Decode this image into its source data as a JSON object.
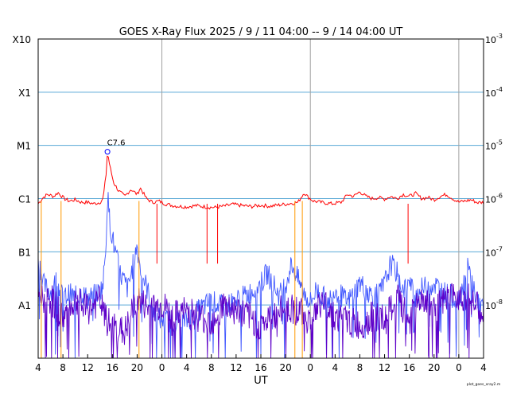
{
  "chart_data": {
    "type": "line",
    "title": "GOES X-Ray Flux   2025  /  9  /  11    04:00 --  9  /  14   04:00    UT",
    "xlabel": "UT",
    "x_range_hours": [
      0,
      72
    ],
    "ylim": [
      1e-09,
      0.001
    ],
    "yscale": "log",
    "left_tick_labels": [
      {
        "label": "X10",
        "value": 0.001
      },
      {
        "label": "X1",
        "value": 0.0001
      },
      {
        "label": "M1",
        "value": 1e-05
      },
      {
        "label": "C1",
        "value": 1e-06
      },
      {
        "label": "B1",
        "value": 1e-07
      },
      {
        "label": "A1",
        "value": 1e-08
      }
    ],
    "right_tick_labels": [
      {
        "base": "10",
        "exp": "-3",
        "value": 0.001
      },
      {
        "base": "10",
        "exp": "-4",
        "value": 0.0001
      },
      {
        "base": "10",
        "exp": "-5",
        "value": 1e-05
      },
      {
        "base": "10",
        "exp": "-6",
        "value": 1e-06
      },
      {
        "base": "10",
        "exp": "-7",
        "value": 1e-07
      },
      {
        "base": "10",
        "exp": "-8",
        "value": 1e-08
      }
    ],
    "x_tick_labels": [
      "4",
      "8",
      "12",
      "16",
      "20",
      "0",
      "4",
      "8",
      "12",
      "16",
      "20",
      "0",
      "4",
      "8",
      "12",
      "16",
      "20",
      "0",
      "4"
    ],
    "day_boundaries_hours": [
      20,
      44,
      68
    ],
    "grid": "horizontal at decades, vertical at midnight",
    "annotation": {
      "text": "C7.6",
      "x_hours": 11.2,
      "value": 7.6e-06
    },
    "series": [
      {
        "color": "#ff0000",
        "x_hours": [
          0,
          0.8,
          1.5,
          2.5,
          3.2,
          4.2,
          5,
          6,
          7,
          8,
          9,
          10,
          10.5,
          11,
          11.2,
          11.6,
          12.2,
          13,
          14,
          15,
          16,
          16.5,
          17.5,
          18.5,
          19.5,
          20.5,
          21.5,
          22.5,
          24,
          25.5,
          27,
          28.5,
          30,
          31.5,
          33,
          34.5,
          36,
          37.5,
          39,
          40.5,
          42,
          43,
          43.5,
          44.5,
          46,
          47.5,
          49,
          50,
          51,
          52,
          53,
          54,
          55,
          56,
          57,
          58,
          59,
          60,
          61,
          62,
          63,
          64,
          65,
          66,
          67,
          68,
          69,
          70,
          71,
          72
        ],
        "values": [
          8e-07,
          1.05e-06,
          1.2e-06,
          1.1e-06,
          1.3e-06,
          1e-06,
          9e-07,
          9.5e-07,
          8.5e-07,
          8.5e-07,
          8e-07,
          8.5e-07,
          1e-06,
          3e-06,
          7.6e-06,
          4e-06,
          2e-06,
          1.4e-06,
          1.1e-06,
          1.5e-06,
          1.2e-06,
          1.6e-06,
          1e-06,
          8.5e-07,
          9e-07,
          8e-07,
          7.5e-07,
          7.2e-07,
          7e-07,
          7.4e-07,
          7e-07,
          6.8e-07,
          7.2e-07,
          7.8e-07,
          7.4e-07,
          7.1e-07,
          7.5e-07,
          7.2e-07,
          7.6e-07,
          8e-07,
          8.5e-07,
          1.3e-06,
          1.1e-06,
          9e-07,
          8.4e-07,
          8e-07,
          8.5e-07,
          1.2e-06,
          1.1e-06,
          1.35e-06,
          1.1e-06,
          1e-06,
          1.05e-06,
          9.8e-07,
          1.1e-06,
          1e-06,
          1.2e-06,
          1.1e-06,
          1.25e-06,
          1e-06,
          1.05e-06,
          9.5e-07,
          1.1e-06,
          1.2e-06,
          1e-06,
          8.6e-07,
          9e-07,
          9.5e-07,
          8.4e-07,
          8.5e-07
        ]
      },
      {
        "color": "#3f56ff",
        "x_hours": [
          0,
          1,
          2,
          3,
          4,
          5,
          6,
          7,
          8,
          9,
          10,
          10.5,
          11,
          11.2,
          11.6,
          12.3,
          13.2,
          14.5,
          16,
          16.5,
          17.5,
          19,
          20.5,
          22,
          24,
          26,
          28,
          30,
          32,
          34,
          36,
          37,
          38,
          39,
          40,
          41,
          42,
          43,
          44,
          45,
          46,
          47,
          48,
          50,
          52,
          54,
          55,
          56,
          57,
          58,
          59,
          60,
          61,
          62,
          64,
          66,
          68,
          69.5,
          71,
          72
        ],
        "values": [
          8e-08,
          2.2e-08,
          1.8e-08,
          3e-08,
          1.3e-08,
          1.6e-08,
          1.4e-08,
          1.7e-08,
          1.3e-08,
          1.5e-08,
          1.8e-08,
          2.4e-08,
          2e-07,
          1.2e-06,
          3.5e-07,
          1.2e-07,
          4e-08,
          2e-08,
          1.3e-07,
          5e-08,
          2.2e-08,
          6e-09,
          5e-09,
          5e-09,
          5e-09,
          8e-09,
          1.2e-08,
          9e-09,
          1.2e-08,
          1.6e-08,
          2.5e-08,
          4e-08,
          2.5e-08,
          1.5e-08,
          2.5e-08,
          6e-08,
          3e-08,
          1.7e-08,
          1.1e-08,
          2e-08,
          1.4e-08,
          1.2e-08,
          2e-08,
          1.1e-08,
          2.6e-08,
          1.5e-08,
          1.5e-08,
          2.5e-08,
          6e-08,
          4e-08,
          2e-08,
          2.5e-08,
          1.5e-08,
          2e-08,
          2.5e-08,
          1.6e-08,
          1.3e-08,
          5e-08,
          1.2e-08,
          8e-09
        ]
      },
      {
        "color": "#5e00c8",
        "x_hours": [
          0,
          2,
          4,
          6,
          8,
          10,
          11,
          12,
          14,
          16,
          18,
          20,
          22,
          24,
          26,
          28,
          30,
          32,
          34,
          36,
          38,
          40,
          42,
          44,
          46,
          48,
          50,
          52,
          54,
          56,
          58,
          60,
          62,
          64,
          66,
          68,
          70,
          72
        ],
        "values": [
          1.2e-08,
          1.3e-08,
          6e-09,
          1.2e-08,
          8e-09,
          1.2e-08,
          5e-09,
          4e-09,
          3e-09,
          1.3e-08,
          8e-09,
          1e-08,
          6e-09,
          8e-09,
          6e-09,
          5e-09,
          1e-08,
          8e-09,
          6e-09,
          4e-09,
          6e-09,
          9e-09,
          8e-09,
          5e-09,
          1.2e-08,
          6e-09,
          5e-09,
          4e-09,
          6e-09,
          5e-09,
          1.3e-08,
          5e-09,
          1.4e-08,
          8e-09,
          1.2e-08,
          1.6e-08,
          1.3e-08,
          6e-09
        ]
      }
    ],
    "data_gaps_hours": [
      0.5,
      3.7,
      7.2,
      16.3,
      17.1,
      19.5,
      27,
      41.5,
      57,
      58.5
    ],
    "event_markers": [
      {
        "x_hours": 0.5,
        "color": "#ff9900"
      },
      {
        "x_hours": 3.7,
        "color": "#ff9900"
      },
      {
        "x_hours": 16.3,
        "color": "#ff9900"
      },
      {
        "x_hours": 41.5,
        "color": "#ff9900"
      },
      {
        "x_hours": 42.7,
        "color": "#ff9900"
      },
      {
        "x_hours": 19.2,
        "color": "#ff0000"
      },
      {
        "x_hours": 27.3,
        "color": "#ff0000"
      },
      {
        "x_hours": 29.0,
        "color": "#ff0000"
      },
      {
        "x_hours": 59.8,
        "color": "#ff0000"
      }
    ],
    "colors": {
      "grid_h": "#5aa9d6",
      "grid_v": "#a0a0a0",
      "annotation_circle": "#0000ff"
    }
  },
  "footer": {
    "credit": "plot_goes_xray2.m"
  }
}
